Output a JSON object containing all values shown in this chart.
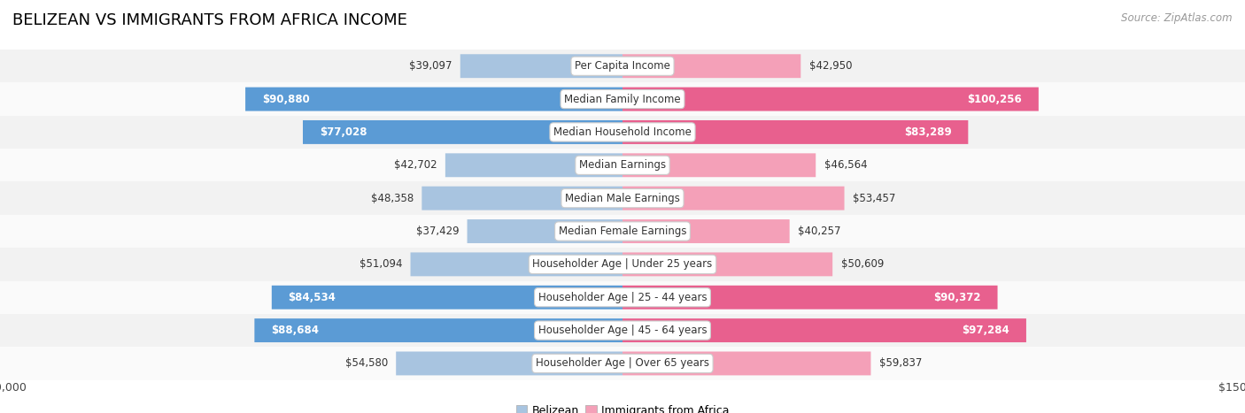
{
  "title": "BELIZEAN VS IMMIGRANTS FROM AFRICA INCOME",
  "source": "Source: ZipAtlas.com",
  "categories": [
    "Per Capita Income",
    "Median Family Income",
    "Median Household Income",
    "Median Earnings",
    "Median Male Earnings",
    "Median Female Earnings",
    "Householder Age | Under 25 years",
    "Householder Age | 25 - 44 years",
    "Householder Age | 45 - 64 years",
    "Householder Age | Over 65 years"
  ],
  "belizean_values": [
    39097,
    90880,
    77028,
    42702,
    48358,
    37429,
    51094,
    84534,
    88684,
    54580
  ],
  "africa_values": [
    42950,
    100256,
    83289,
    46564,
    53457,
    40257,
    50609,
    90372,
    97284,
    59837
  ],
  "belizean_color_light": "#a8c4e0",
  "belizean_color_dark": "#5b9bd5",
  "africa_color_light": "#f4a0b8",
  "africa_color_dark": "#e8608e",
  "max_value": 150000,
  "row_colors": [
    "#f2f2f2",
    "#fafafa"
  ],
  "title_fontsize": 13,
  "axis_label_fontsize": 9,
  "bar_label_fontsize": 8.5,
  "category_fontsize": 8.5,
  "legend_fontsize": 9,
  "source_fontsize": 8.5,
  "bel_dark_threshold": 60000,
  "afr_dark_threshold": 65000
}
